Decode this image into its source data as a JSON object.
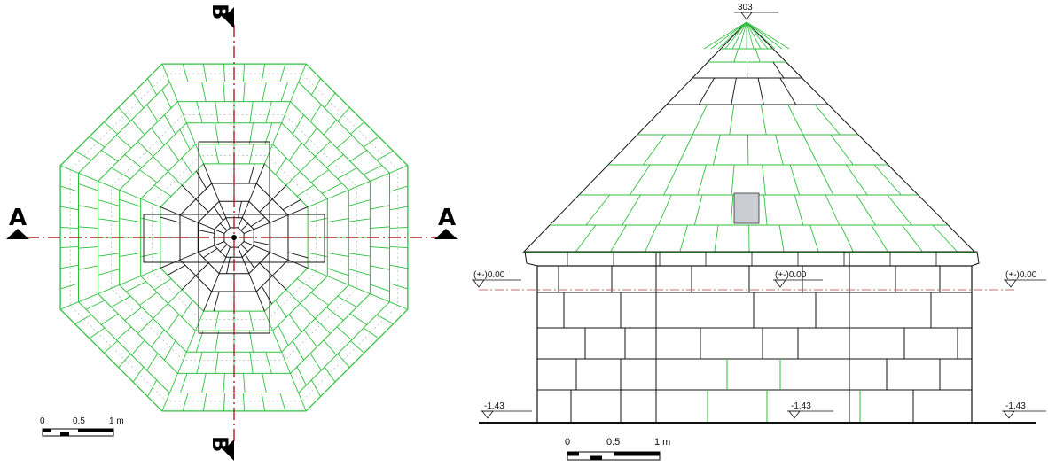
{
  "section_marks": {
    "a_left": "A",
    "a_right": "A",
    "b_top": "B",
    "b_bottom": "B"
  },
  "scale_bar_left": {
    "labels": [
      "0",
      "0.5",
      "1 m"
    ]
  },
  "scale_bar_right": {
    "labels": [
      "0",
      "0.5",
      "1 m"
    ]
  },
  "elevation": {
    "apex_label": "303",
    "level_labels_zero": [
      "(+-)0.00",
      "(+-)0.00",
      "(+-)0.00"
    ],
    "level_labels_base": [
      "-1.43",
      "-1.43",
      "-1.43"
    ]
  },
  "colors": {
    "roof_line": "#2fbf3f",
    "axis_line": "#b0202a",
    "ink": "#111111"
  }
}
